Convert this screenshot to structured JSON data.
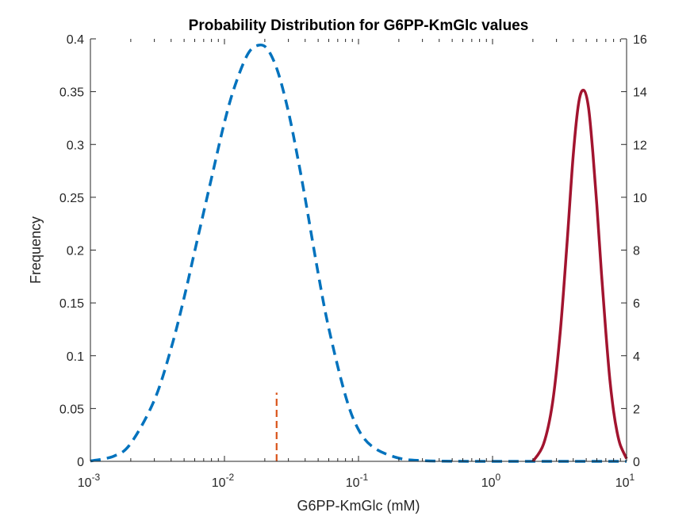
{
  "chart_data": {
    "type": "line",
    "title": "Probability Distribution for G6PP-KmGlc values",
    "xlabel": "G6PP-KmGlc (mM)",
    "ylabel": "Frequency",
    "xscale": "log",
    "xlim": [
      0.001,
      10
    ],
    "ylim_left": [
      0,
      0.4
    ],
    "ylim_right": [
      0,
      16
    ],
    "grid": false,
    "legend": "none",
    "x_ticks": [
      {
        "value": 0.001,
        "base": "10",
        "exp": "-3"
      },
      {
        "value": 0.01,
        "base": "10",
        "exp": "-2"
      },
      {
        "value": 0.1,
        "base": "10",
        "exp": "-1"
      },
      {
        "value": 1,
        "base": "10",
        "exp": "0"
      },
      {
        "value": 10,
        "base": "10",
        "exp": "1"
      }
    ],
    "y_left_ticks": [
      "0",
      "0.05",
      "0.1",
      "0.15",
      "0.2",
      "0.25",
      "0.3",
      "0.35",
      "0.4"
    ],
    "y_right_ticks": [
      "0",
      "2",
      "4",
      "6",
      "8",
      "10",
      "12",
      "14",
      "16"
    ],
    "series": [
      {
        "axis": "left",
        "style": "dashed",
        "color": "#0072BD",
        "x": [
          0.001,
          0.0015,
          0.002,
          0.003,
          0.004,
          0.005,
          0.006,
          0.008,
          0.01,
          0.012,
          0.015,
          0.018,
          0.021,
          0.025,
          0.03,
          0.035,
          0.04,
          0.05,
          0.06,
          0.08,
          0.1,
          0.13,
          0.2,
          0.3,
          0.5,
          1,
          2,
          5,
          10
        ],
        "values": [
          0.0003,
          0.005,
          0.017,
          0.058,
          0.107,
          0.155,
          0.199,
          0.268,
          0.321,
          0.356,
          0.386,
          0.394,
          0.39,
          0.369,
          0.331,
          0.289,
          0.249,
          0.178,
          0.126,
          0.062,
          0.03,
          0.013,
          0.003,
          0.0007,
          0.0001,
          0,
          0,
          0,
          0
        ]
      },
      {
        "axis": "right",
        "style": "solid",
        "color": "#A2142F",
        "x": [
          2.0,
          2.4,
          2.8,
          3.2,
          3.6,
          4.0,
          4.4,
          4.8,
          5.2,
          5.6,
          6.0,
          6.5,
          7.0,
          7.5,
          8.0,
          8.5,
          9.0,
          10.0
        ],
        "values": [
          0.0,
          0.65,
          2.2,
          4.9,
          8.3,
          11.6,
          13.6,
          14.05,
          13.4,
          11.7,
          9.7,
          7.1,
          4.9,
          3.1,
          1.9,
          1.1,
          0.6,
          0.1
        ]
      },
      {
        "axis": "left",
        "style": "dashed",
        "color": "#D95319",
        "x": [
          0.0245,
          0.0245
        ],
        "values": [
          0,
          0.065
        ]
      }
    ]
  }
}
